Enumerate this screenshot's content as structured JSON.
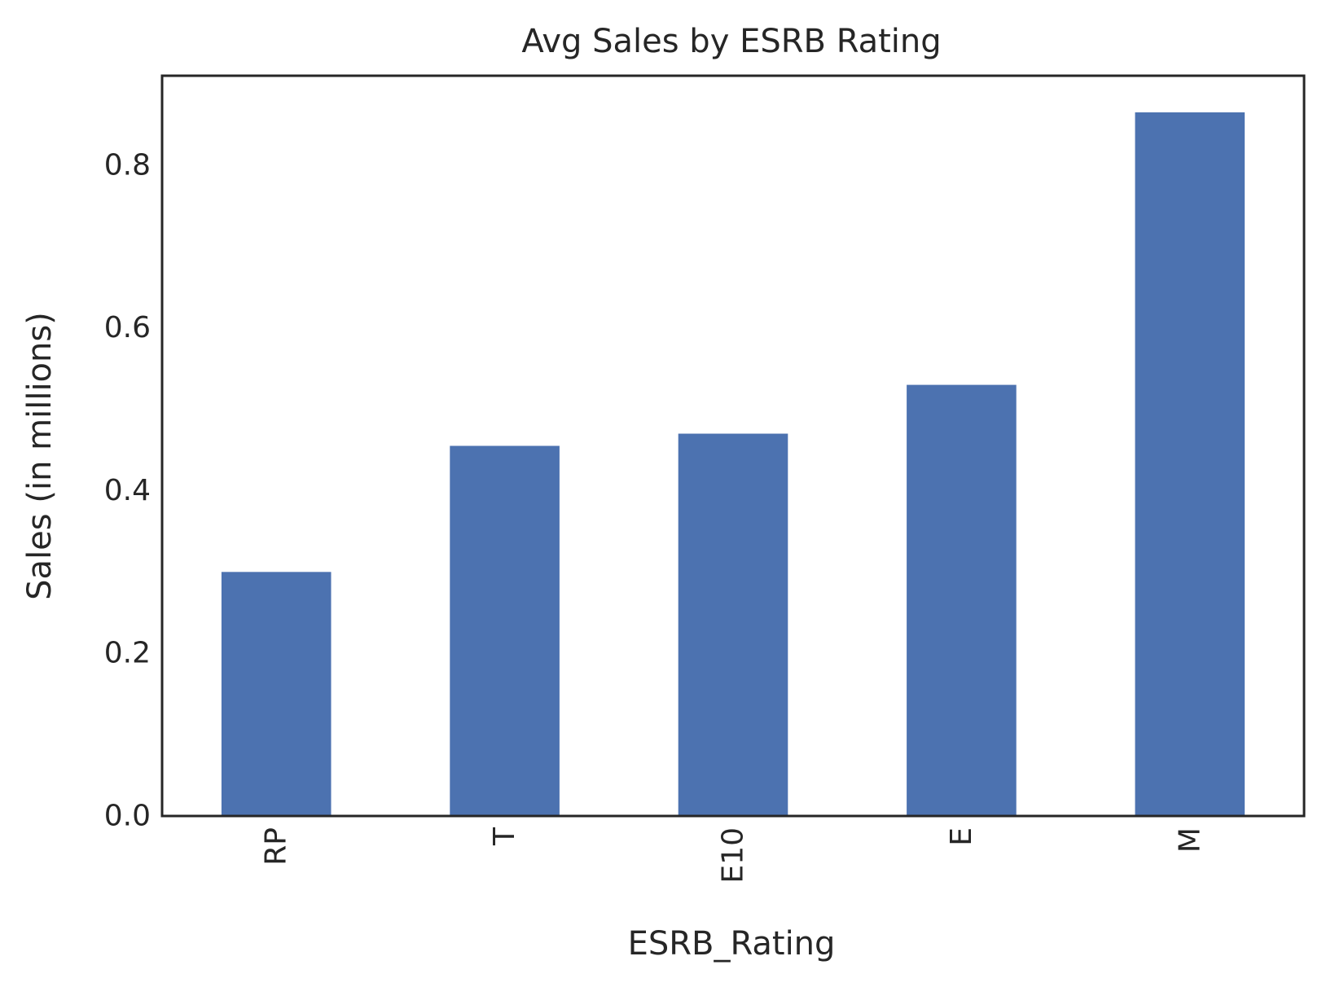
{
  "chart_data": {
    "type": "bar",
    "title": "Avg Sales by ESRB Rating",
    "xlabel": "ESRB_Rating",
    "ylabel": "Sales (in millions)",
    "categories": [
      "RP",
      "T",
      "E10",
      "E",
      "M"
    ],
    "values": [
      0.3,
      0.455,
      0.47,
      0.53,
      0.865
    ],
    "ylim": [
      0,
      0.91
    ],
    "yticks": [
      0.0,
      0.2,
      0.4,
      0.6,
      0.8
    ],
    "ytick_labels": [
      "0.0",
      "0.2",
      "0.4",
      "0.6",
      "0.8"
    ],
    "grid": false,
    "legend": "none",
    "bar_color": "#4c72b0",
    "frame_color": "#262626",
    "x_tick_rotation": "vertical"
  }
}
